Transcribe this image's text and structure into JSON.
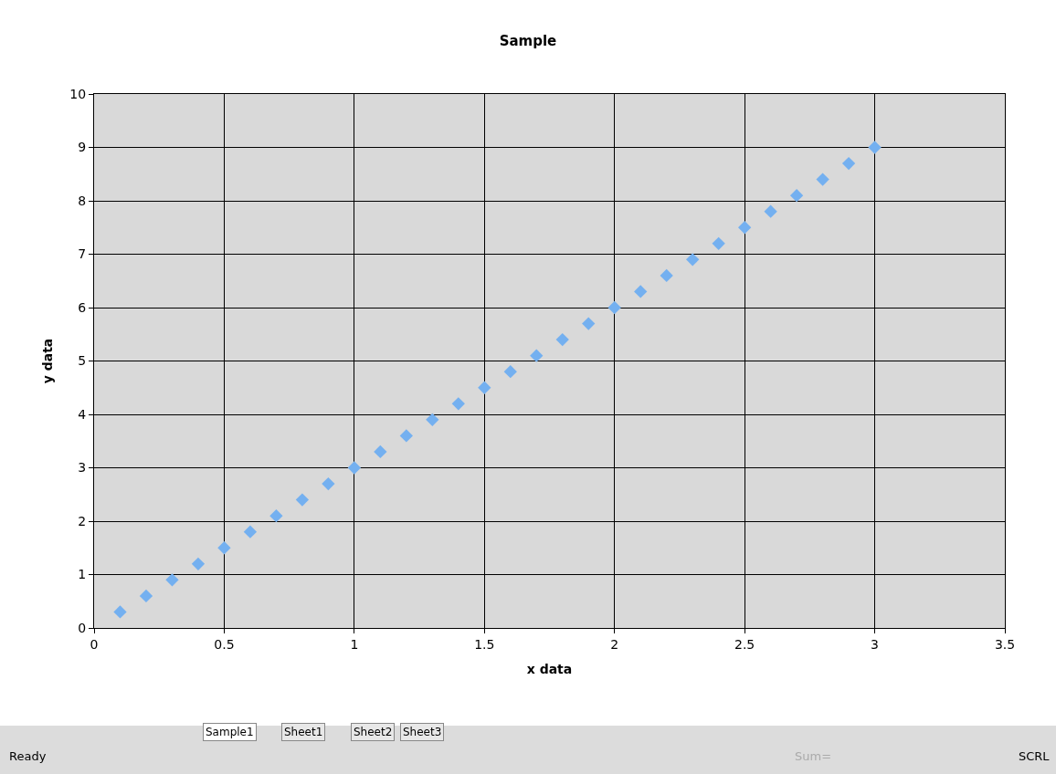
{
  "chart_data": {
    "type": "scatter",
    "title": "Sample",
    "xlabel": "x data",
    "ylabel": "y data",
    "x": [
      0.1,
      0.2,
      0.3,
      0.4,
      0.5,
      0.6,
      0.7,
      0.8,
      0.9,
      1.0,
      1.1,
      1.2,
      1.3,
      1.4,
      1.5,
      1.6,
      1.7,
      1.8,
      1.9,
      2.0,
      2.1,
      2.2,
      2.3,
      2.4,
      2.5,
      2.6,
      2.7,
      2.8,
      2.9,
      3.0
    ],
    "series": [
      {
        "color": "#74b0f0",
        "values": [
          0.3,
          0.6,
          0.9,
          1.2,
          1.5,
          1.8,
          2.1,
          2.4,
          2.7,
          3.0,
          3.3,
          3.6,
          3.9,
          4.2,
          4.5,
          4.8,
          5.1,
          5.4,
          5.7,
          6.0,
          6.3,
          6.6,
          6.9,
          7.2,
          7.5,
          7.8,
          8.1,
          8.4,
          8.7,
          9.0
        ]
      }
    ],
    "xlim": [
      0,
      3.5
    ],
    "xticks": [
      0,
      0.5,
      1,
      1.5,
      2,
      2.5,
      3,
      3.5
    ],
    "ylim": [
      0,
      10
    ],
    "yticks": [
      0,
      1,
      2,
      3,
      4,
      5,
      6,
      7,
      8,
      9,
      10
    ],
    "grid": true,
    "marker": "diamond",
    "annotations": [
      "Sample1",
      "Sheet1",
      "Sheet2",
      "Sheet3",
      "Ready",
      "Sum=",
      "SCRL"
    ]
  }
}
